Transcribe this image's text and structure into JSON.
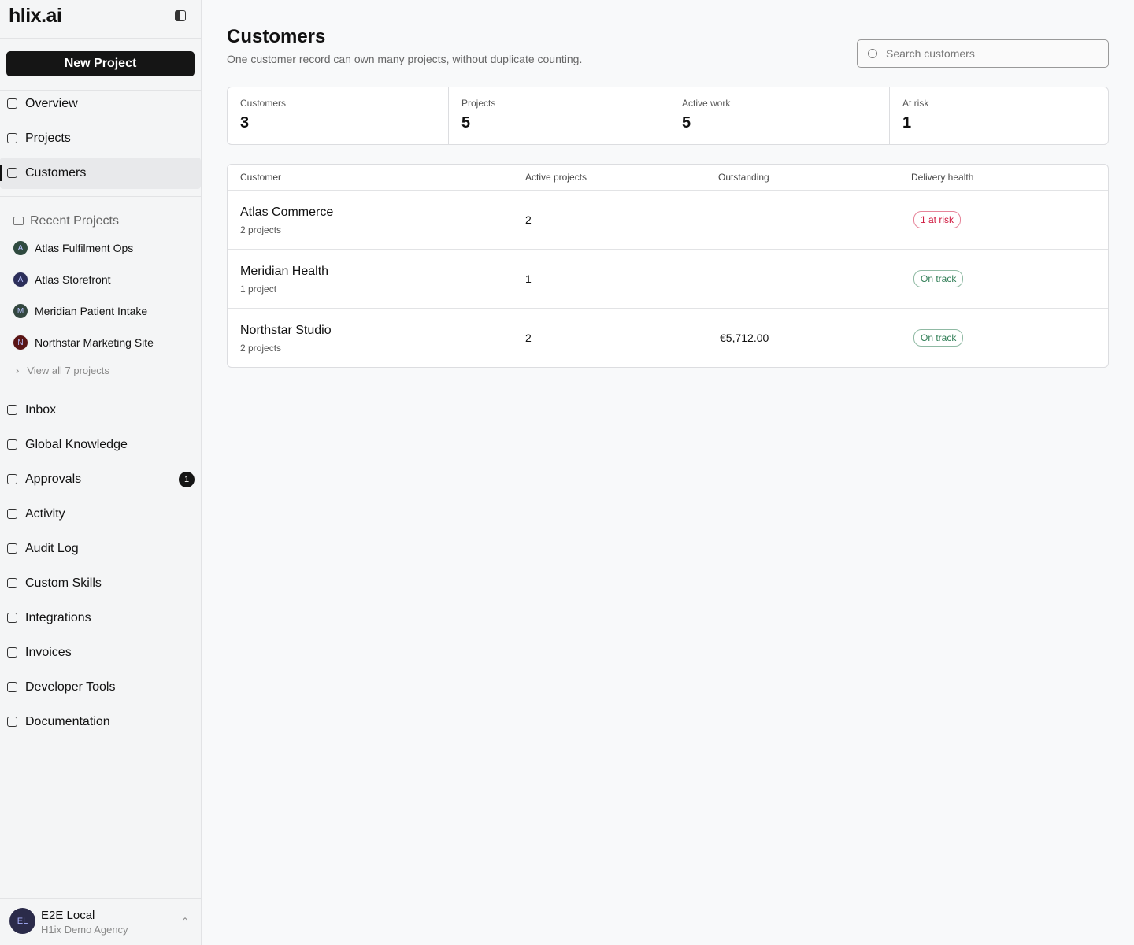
{
  "sidebar": {
    "logo": "hlix.ai",
    "new_project": "New Project",
    "nav": [
      "Overview",
      "Projects",
      "Customers"
    ],
    "active": "Customers",
    "recent_title": "Recent Projects",
    "recent": [
      {
        "initial": "A",
        "name": "Atlas Fulfilment Ops",
        "color": "#2f4a3f"
      },
      {
        "initial": "A",
        "name": "Atlas Storefront",
        "color": "#2c2f5a"
      },
      {
        "initial": "M",
        "name": "Meridian Patient Intake",
        "color": "#33473f"
      },
      {
        "initial": "N",
        "name": "Northstar Marketing Site",
        "color": "#5a1515"
      }
    ],
    "view_all": "View all 7 projects",
    "nav2": [
      {
        "label": "Inbox"
      },
      {
        "label": "Global Knowledge"
      },
      {
        "label": "Approvals",
        "badge": 1
      },
      {
        "label": "Activity"
      },
      {
        "label": "Audit Log"
      },
      {
        "label": "Custom Skills"
      },
      {
        "label": "Integrations"
      },
      {
        "label": "Invoices"
      },
      {
        "label": "Developer Tools"
      },
      {
        "label": "Documentation"
      }
    ],
    "user": {
      "initials": "EL",
      "name": "E2E Local",
      "org": "H1ix Demo Agency"
    }
  },
  "header": {
    "title": "Customers",
    "subtitle": "One customer record can own many projects, without duplicate counting.",
    "search_placeholder": "Search customers"
  },
  "stats": [
    {
      "label": "Customers",
      "value": 3
    },
    {
      "label": "Projects",
      "value": 5
    },
    {
      "label": "Active work",
      "value": 5
    },
    {
      "label": "At risk",
      "value": 1
    }
  ],
  "table": {
    "columns": [
      "Customer",
      "Active projects",
      "Outstanding",
      "Delivery health"
    ],
    "rows": [
      {
        "name": "Atlas Commerce",
        "projects": "2 projects",
        "active": 2,
        "outstanding": "–",
        "health": "1 at risk",
        "health_color": "#d0193f"
      },
      {
        "name": "Meridian Health",
        "projects": "1 project",
        "active": 1,
        "outstanding": "–",
        "health": "On track",
        "health_color": "#2f7d55"
      },
      {
        "name": "Northstar Studio",
        "projects": "2 projects",
        "active": 2,
        "outstanding": "€5,712.00",
        "health": "On track",
        "health_color": "#2f7d55"
      }
    ]
  }
}
